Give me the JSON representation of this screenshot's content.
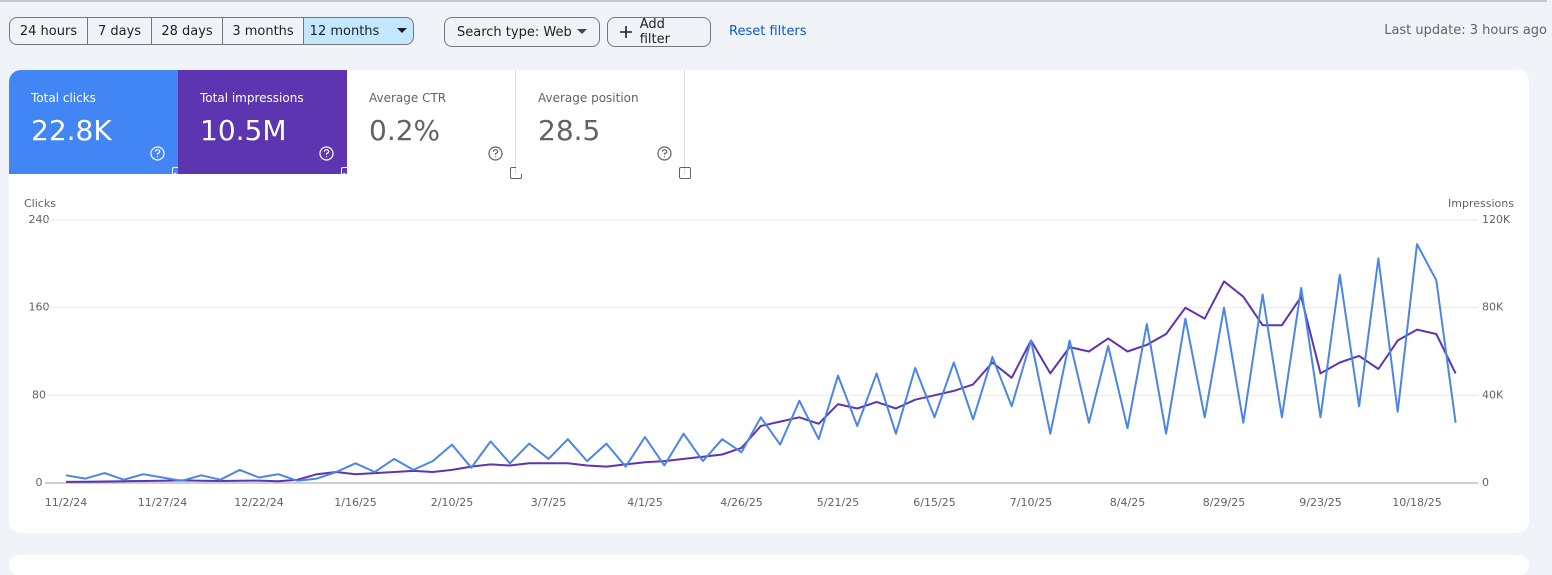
{
  "toolbar": {
    "date_ranges": [
      "24 hours",
      "7 days",
      "28 days",
      "3 months",
      "12 months"
    ],
    "selected_range": 4,
    "search_type": "Search type: Web",
    "add_filter": "Add filter",
    "reset": "Reset filters",
    "last_update": "Last update: 3 hours ago"
  },
  "metrics": [
    {
      "label": "Total clicks",
      "value": "22.8K",
      "checked": true,
      "color": "#4285f4"
    },
    {
      "label": "Total impressions",
      "value": "10.5M",
      "checked": true,
      "color": "#5e35b1"
    },
    {
      "label": "Average CTR",
      "value": "0.2%",
      "checked": false
    },
    {
      "label": "Average position",
      "value": "28.5",
      "checked": false
    }
  ],
  "chart_data": {
    "type": "line",
    "x": [
      "11/2/24",
      "11/7/24",
      "11/12/24",
      "11/17/24",
      "11/22/24",
      "11/27/24",
      "12/2/24",
      "12/7/24",
      "12/12/24",
      "12/17/24",
      "12/22/24",
      "12/27/24",
      "1/1/25",
      "1/6/25",
      "1/11/25",
      "1/16/25",
      "1/21/25",
      "1/26/25",
      "1/31/25",
      "2/5/25",
      "2/10/25",
      "2/15/25",
      "2/20/25",
      "2/25/25",
      "3/2/25",
      "3/7/25",
      "3/12/25",
      "3/17/25",
      "3/22/25",
      "3/27/25",
      "4/1/25",
      "4/6/25",
      "4/11/25",
      "4/16/25",
      "4/21/25",
      "4/26/25",
      "5/1/25",
      "5/6/25",
      "5/11/25",
      "5/16/25",
      "5/21/25",
      "5/26/25",
      "5/31/25",
      "6/5/25",
      "6/10/25",
      "6/15/25",
      "6/20/25",
      "6/25/25",
      "6/30/25",
      "7/5/25",
      "7/10/25",
      "7/15/25",
      "7/20/25",
      "7/25/25",
      "7/30/25",
      "8/4/25",
      "8/9/25",
      "8/14/25",
      "8/19/25",
      "8/24/25",
      "8/29/25",
      "9/3/25",
      "9/8/25",
      "9/13/25",
      "9/18/25",
      "9/23/25",
      "9/28/25",
      "10/3/25",
      "10/8/25",
      "10/13/25",
      "10/18/25",
      "10/23/25",
      "10/28/25"
    ],
    "xticks": [
      "11/2/24",
      "11/27/24",
      "12/22/24",
      "1/16/25",
      "2/10/25",
      "3/7/25",
      "4/1/25",
      "4/26/25",
      "5/21/25",
      "6/15/25",
      "7/10/25",
      "8/4/25",
      "8/29/25",
      "9/23/25",
      "10/18/25"
    ],
    "ylim": [
      0,
      240
    ],
    "yticks": [
      0,
      80,
      160,
      240
    ],
    "y2lim": [
      0,
      120000
    ],
    "y2ticks": [
      0,
      {
        "value": 40000,
        "label": "40K"
      },
      {
        "value": 80000,
        "label": "80K"
      },
      {
        "value": 120000,
        "label": "120K"
      }
    ],
    "grid": true,
    "series": [
      {
        "name": "Clicks",
        "color": "#4a86e8",
        "values": [
          7,
          4,
          9,
          3,
          8,
          5,
          2,
          7,
          3,
          12,
          5,
          8,
          2,
          4,
          10,
          18,
          10,
          22,
          12,
          20,
          35,
          14,
          38,
          18,
          36,
          22,
          40,
          20,
          36,
          15,
          42,
          16,
          45,
          20,
          40,
          28,
          60,
          35,
          75,
          40,
          98,
          52,
          100,
          45,
          105,
          60,
          110,
          58,
          115,
          70,
          130,
          45,
          130,
          55,
          125,
          50,
          145,
          45,
          150,
          60,
          160,
          55,
          172,
          60,
          178,
          60,
          190,
          70,
          205,
          65,
          218,
          185,
          55
        ]
      },
      {
        "name": "Impressions",
        "color": "#5e35b1",
        "axis": "y2",
        "values": [
          500,
          600,
          700,
          800,
          900,
          1000,
          1200,
          1000,
          900,
          1000,
          1100,
          800,
          1500,
          4000,
          5000,
          4000,
          4500,
          5000,
          5500,
          5000,
          6000,
          7500,
          8500,
          8000,
          9000,
          9000,
          9000,
          8000,
          7500,
          8500,
          9500,
          10000,
          11000,
          12000,
          13000,
          16000,
          26000,
          28000,
          30000,
          27000,
          36000,
          34000,
          37000,
          34000,
          38000,
          40000,
          42000,
          45000,
          55000,
          48000,
          65000,
          50000,
          62000,
          60000,
          66000,
          60000,
          63000,
          68000,
          80000,
          75000,
          92000,
          85000,
          72000,
          72000,
          85000,
          50000,
          55000,
          58000,
          52000,
          65000,
          70000,
          68000,
          50000
        ]
      }
    ]
  }
}
